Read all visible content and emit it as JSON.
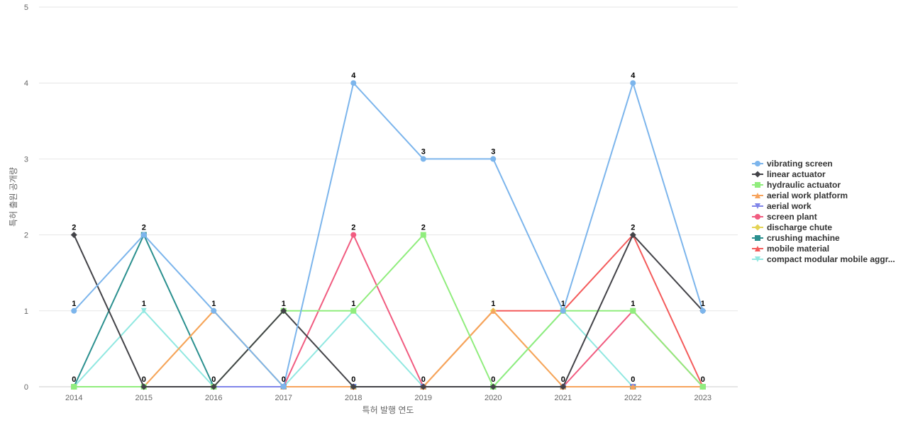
{
  "chart_data": {
    "type": "line",
    "title": "",
    "xlabel": "특허 발행 연도",
    "ylabel": "특허 출원 공개량",
    "categories": [
      "2014",
      "2015",
      "2016",
      "2017",
      "2018",
      "2019",
      "2020",
      "2021",
      "2022",
      "2023"
    ],
    "yticks": [
      "0",
      "1",
      "2",
      "3",
      "4",
      "5"
    ],
    "ylim": [
      0,
      5
    ],
    "grid": true,
    "legend_position": "right",
    "series": [
      {
        "name": "vibrating screen",
        "color": "#7cb5ec",
        "marker": "circle",
        "values": [
          1,
          2,
          1,
          0,
          4,
          3,
          3,
          1,
          4,
          1
        ]
      },
      {
        "name": "linear actuator",
        "color": "#434348",
        "marker": "diamond",
        "values": [
          2,
          0,
          0,
          1,
          0,
          0,
          0,
          0,
          2,
          1
        ]
      },
      {
        "name": "hydraulic actuator",
        "color": "#90ed7d",
        "marker": "square",
        "values": [
          0,
          0,
          0,
          1,
          1,
          2,
          0,
          1,
          1,
          0
        ]
      },
      {
        "name": "aerial work platform",
        "color": "#f7a35c",
        "marker": "triangle",
        "values": [
          0,
          0,
          1,
          0,
          0,
          0,
          1,
          0,
          0,
          0
        ]
      },
      {
        "name": "aerial work",
        "color": "#8085e9",
        "marker": "triangle-down",
        "values": [
          0,
          0,
          0,
          0,
          0,
          0,
          0,
          0,
          0,
          0
        ]
      },
      {
        "name": "screen plant",
        "color": "#f15c80",
        "marker": "circle",
        "values": [
          0,
          0,
          0,
          0,
          2,
          0,
          0,
          0,
          1,
          0
        ]
      },
      {
        "name": "discharge chute",
        "color": "#e4d354",
        "marker": "diamond",
        "values": [
          0,
          0,
          1,
          0,
          0,
          0,
          1,
          0,
          0,
          0
        ]
      },
      {
        "name": "crushing machine",
        "color": "#2b908f",
        "marker": "square",
        "values": [
          0,
          2,
          0,
          0,
          0,
          0,
          0,
          0,
          0,
          0
        ]
      },
      {
        "name": "mobile material",
        "color": "#f45b5b",
        "marker": "triangle",
        "values": [
          0,
          0,
          0,
          0,
          0,
          0,
          1,
          1,
          2,
          0
        ]
      },
      {
        "name": "compact modular mobile aggr...",
        "color": "#91e8e1",
        "marker": "triangle-down",
        "values": [
          0,
          1,
          0,
          0,
          1,
          0,
          0,
          1,
          0,
          0
        ]
      }
    ],
    "data_labels": [
      {
        "category": "2014",
        "values": [
          "2",
          "1",
          "0"
        ]
      },
      {
        "category": "2015",
        "values": [
          "2",
          "1",
          "0"
        ]
      },
      {
        "category": "2016",
        "values": [
          "1",
          "0"
        ]
      },
      {
        "category": "2017",
        "values": [
          "1",
          "0"
        ]
      },
      {
        "category": "2018",
        "values": [
          "4",
          "2",
          "1",
          "0"
        ]
      },
      {
        "category": "2019",
        "values": [
          "3",
          "2",
          "0"
        ]
      },
      {
        "category": "2020",
        "values": [
          "3",
          "1",
          "0"
        ]
      },
      {
        "category": "2021",
        "values": [
          "1",
          "0"
        ]
      },
      {
        "category": "2022",
        "values": [
          "4",
          "2",
          "1",
          "0"
        ]
      },
      {
        "category": "2023",
        "values": [
          "1",
          "0"
        ]
      }
    ]
  }
}
